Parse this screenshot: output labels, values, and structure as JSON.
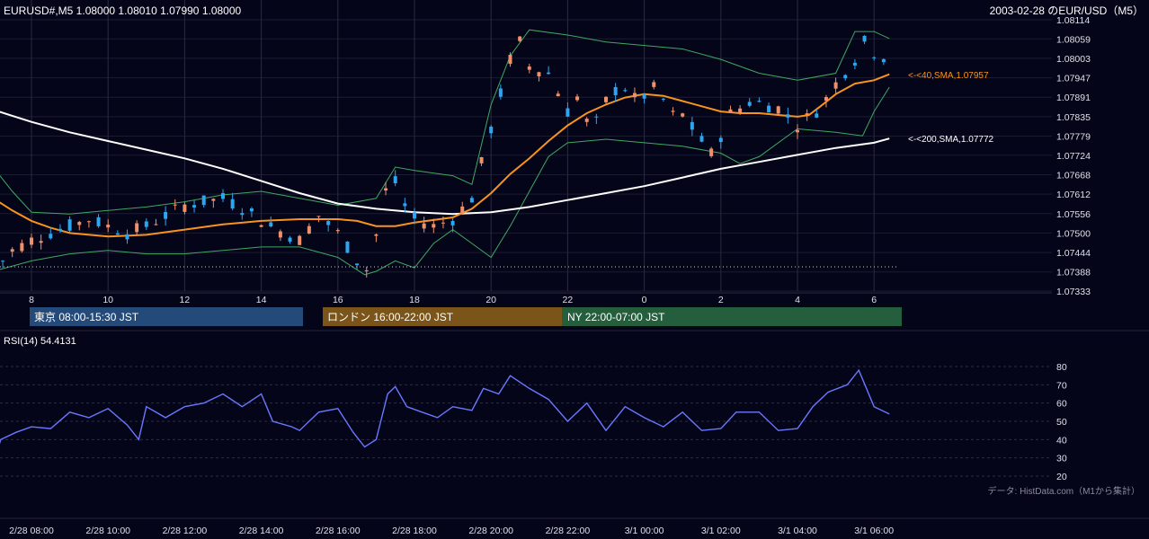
{
  "header": {
    "ohlc_text": "EURUSD#,M5 1.08000 1.08010 1.07990 1.08000",
    "right_title": "2003-02-28 のEUR/USD（M5）"
  },
  "sessions": [
    {
      "label": "東京 08:00-15:30 JST",
      "color": "#244a7a"
    },
    {
      "label": "ロンドン 16:00-22:00 JST",
      "color": "#7a5418"
    },
    {
      "label": "NY 22:00-07:00 JST",
      "color": "#245e3c"
    }
  ],
  "rsi_label": "RSI(14) 54.4131",
  "source_note": "データ: HistData.com（M1から集計）",
  "colors": {
    "up": "#2ea6ef",
    "down": "#f0906a",
    "sma40": "#f7941d",
    "sma200": "#ffffff",
    "bb": "#3fa860",
    "rsi": "#6a78ff"
  },
  "chart_data": [
    {
      "type": "candlestick",
      "x_tick_labels": [
        "8",
        "10",
        "12",
        "14",
        "16",
        "18",
        "20",
        "22",
        "0",
        "2",
        "4",
        "6"
      ],
      "y_ticks": [
        "1.08114",
        "1.08059",
        "1.08003",
        "1.07947",
        "1.07891",
        "1.07835",
        "1.07779",
        "1.07724",
        "1.07668",
        "1.07612",
        "1.07556",
        "1.07500",
        "1.07444",
        "1.07388",
        "1.07333"
      ],
      "ylim": [
        1.07333,
        1.08114
      ],
      "series": [
        {
          "name": "40,SMA",
          "last_value": 1.07957,
          "label": "<-<40,SMA,1.07957",
          "points": [
            [
              7.0,
              1.076
            ],
            [
              7.5,
              1.07565
            ],
            [
              8.0,
              1.07535
            ],
            [
              8.5,
              1.07515
            ],
            [
              9.0,
              1.075
            ],
            [
              10.0,
              1.0749
            ],
            [
              11.0,
              1.07495
            ],
            [
              12.0,
              1.0751
            ],
            [
              13.0,
              1.07525
            ],
            [
              14.0,
              1.07535
            ],
            [
              15.0,
              1.0754
            ],
            [
              16.0,
              1.0754
            ],
            [
              16.5,
              1.07535
            ],
            [
              17.0,
              1.0752
            ],
            [
              17.5,
              1.0752
            ],
            [
              18.0,
              1.0753
            ],
            [
              19.0,
              1.07545
            ],
            [
              19.5,
              1.0757
            ],
            [
              20.0,
              1.07615
            ],
            [
              20.5,
              1.0767
            ],
            [
              21.0,
              1.07715
            ],
            [
              21.5,
              1.07765
            ],
            [
              22.0,
              1.0781
            ],
            [
              22.5,
              1.07845
            ],
            [
              23.0,
              1.0787
            ],
            [
              23.5,
              1.0789
            ],
            [
              24.0,
              1.079
            ],
            [
              24.5,
              1.07895
            ],
            [
              25.0,
              1.0788
            ],
            [
              25.5,
              1.07865
            ],
            [
              26.0,
              1.0785
            ],
            [
              26.5,
              1.07845
            ],
            [
              27.0,
              1.07845
            ],
            [
              27.5,
              1.0784
            ],
            [
              28.0,
              1.07835
            ],
            [
              28.3,
              1.0784
            ],
            [
              28.6,
              1.07865
            ],
            [
              29.0,
              1.079
            ],
            [
              29.5,
              1.0793
            ],
            [
              30.0,
              1.0794
            ],
            [
              30.4,
              1.07957
            ]
          ]
        },
        {
          "name": "200,SMA",
          "last_value": 1.07772,
          "label": "<-<200,SMA,1.07772",
          "points": [
            [
              7.0,
              1.07855
            ],
            [
              8.0,
              1.0782
            ],
            [
              9.0,
              1.0779
            ],
            [
              10.0,
              1.07765
            ],
            [
              11.0,
              1.0774
            ],
            [
              12.0,
              1.07715
            ],
            [
              13.0,
              1.07685
            ],
            [
              14.0,
              1.0765
            ],
            [
              15.0,
              1.07615
            ],
            [
              16.0,
              1.07585
            ],
            [
              17.0,
              1.0757
            ],
            [
              18.0,
              1.0756
            ],
            [
              19.0,
              1.07555
            ],
            [
              20.0,
              1.0756
            ],
            [
              21.0,
              1.07575
            ],
            [
              22.0,
              1.07595
            ],
            [
              23.0,
              1.07615
            ],
            [
              24.0,
              1.07635
            ],
            [
              25.0,
              1.0766
            ],
            [
              26.0,
              1.07685
            ],
            [
              27.0,
              1.07705
            ],
            [
              28.0,
              1.07725
            ],
            [
              29.0,
              1.07745
            ],
            [
              30.0,
              1.0776
            ],
            [
              30.4,
              1.07772
            ]
          ]
        },
        {
          "name": "BB upper",
          "points": [
            [
              7.0,
              1.0769
            ],
            [
              7.5,
              1.0762
            ],
            [
              8.0,
              1.0756
            ],
            [
              9.0,
              1.07555
            ],
            [
              10.0,
              1.07565
            ],
            [
              11.0,
              1.07575
            ],
            [
              12.0,
              1.0759
            ],
            [
              13.0,
              1.0761
            ],
            [
              14.0,
              1.0762
            ],
            [
              15.0,
              1.076
            ],
            [
              16.0,
              1.0758
            ],
            [
              17.0,
              1.076
            ],
            [
              17.5,
              1.0769
            ],
            [
              18.0,
              1.0768
            ],
            [
              19.0,
              1.07665
            ],
            [
              19.5,
              1.0764
            ],
            [
              20.0,
              1.0787
            ],
            [
              20.5,
              1.0801
            ],
            [
              21.0,
              1.08085
            ],
            [
              22.0,
              1.0807
            ],
            [
              23.0,
              1.0805
            ],
            [
              24.0,
              1.0804
            ],
            [
              25.0,
              1.0803
            ],
            [
              26.0,
              1.08
            ],
            [
              27.0,
              1.0796
            ],
            [
              28.0,
              1.0794
            ],
            [
              29.0,
              1.0796
            ],
            [
              29.5,
              1.0808
            ],
            [
              30.0,
              1.0808
            ],
            [
              30.4,
              1.0806
            ]
          ]
        },
        {
          "name": "BB lower",
          "points": [
            [
              7.0,
              1.0739
            ],
            [
              8.0,
              1.0742
            ],
            [
              9.0,
              1.0744
            ],
            [
              10.0,
              1.0745
            ],
            [
              11.0,
              1.0744
            ],
            [
              12.0,
              1.0744
            ],
            [
              13.0,
              1.0745
            ],
            [
              14.0,
              1.0746
            ],
            [
              15.0,
              1.0746
            ],
            [
              16.0,
              1.0743
            ],
            [
              16.7,
              1.0738
            ],
            [
              17.0,
              1.0739
            ],
            [
              17.5,
              1.0742
            ],
            [
              18.0,
              1.074
            ],
            [
              18.5,
              1.0747
            ],
            [
              19.0,
              1.0751
            ],
            [
              19.5,
              1.0747
            ],
            [
              20.0,
              1.0743
            ],
            [
              20.5,
              1.0752
            ],
            [
              21.0,
              1.0762
            ],
            [
              21.5,
              1.0772
            ],
            [
              22.0,
              1.0776
            ],
            [
              23.0,
              1.0777
            ],
            [
              24.0,
              1.0776
            ],
            [
              25.0,
              1.0775
            ],
            [
              26.0,
              1.0773
            ],
            [
              26.5,
              1.077
            ],
            [
              27.0,
              1.0772
            ],
            [
              28.0,
              1.078
            ],
            [
              29.0,
              1.0779
            ],
            [
              29.7,
              1.0778
            ],
            [
              30.0,
              1.0785
            ],
            [
              30.4,
              1.0792
            ]
          ]
        }
      ]
    },
    {
      "type": "line",
      "name": "RSI(14)",
      "last_value": 54.4131,
      "y_ticks": [
        "80",
        "70",
        "60",
        "50",
        "40",
        "30",
        "20"
      ],
      "ylim": [
        20,
        80
      ],
      "x_tick_labels": [
        "2/28 08:00",
        "2/28 10:00",
        "2/28 12:00",
        "2/28 14:00",
        "2/28 16:00",
        "2/28 18:00",
        "2/28 20:00",
        "2/28 22:00",
        "3/1 00:00",
        "3/1 02:00",
        "3/1 04:00",
        "3/1 06:00"
      ]
    }
  ]
}
